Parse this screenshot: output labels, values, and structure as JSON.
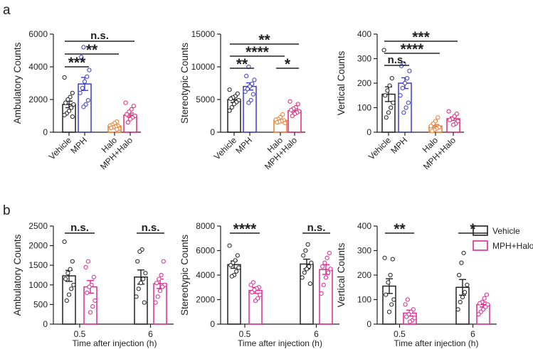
{
  "panels": {
    "a": "a",
    "b": "b"
  },
  "colors": {
    "Vehicle": "#222222",
    "MPH": "#3c3cd0",
    "Halo": "#f07a2a",
    "MPH+Halo": "#e0287a",
    "MPH+Halo_b": "#e02890"
  },
  "legend": {
    "vehicle": "Vehicle",
    "mph_halo": "MPH+Halo"
  },
  "chart_data": [
    {
      "type": "bar",
      "panel": "a",
      "title": "",
      "ylabel": "Ambulatory Counts",
      "categories": [
        "Vehicle",
        "MPH",
        "Halo",
        "MPH+Halo"
      ],
      "values": [
        1700,
        2950,
        380,
        1050
      ],
      "sem": [
        200,
        400,
        60,
        120
      ],
      "ylim": [
        0,
        6000
      ],
      "yticks": [
        0,
        2000,
        4000,
        6000
      ],
      "points": [
        [
          3350,
          2400,
          2150,
          2000,
          1800,
          1700,
          1500,
          1300,
          1150,
          1050,
          950
        ],
        [
          5200,
          4600,
          3800,
          3400,
          3100,
          2700,
          2400,
          1950,
          1700,
          1550
        ],
        [
          650,
          550,
          450,
          400,
          380,
          340,
          300,
          260,
          220,
          180
        ],
        [
          1800,
          1600,
          1400,
          1250,
          1100,
          1000,
          900,
          800,
          600
        ]
      ],
      "significance": [
        {
          "from": 0,
          "to": 1,
          "label": "***",
          "level": 0
        },
        {
          "from": 0,
          "to": 2,
          "label": "**",
          "level": 1
        },
        {
          "from": 0,
          "to": 3,
          "label": "n.s.",
          "level": 2
        }
      ]
    },
    {
      "type": "bar",
      "panel": "a",
      "title": "",
      "ylabel": "Stereotypic Counts",
      "categories": [
        "Vehicle",
        "MPH",
        "Halo",
        "MPH+Halo"
      ],
      "values": [
        5000,
        7000,
        1800,
        3300
      ],
      "sem": [
        450,
        550,
        150,
        250
      ],
      "ylim": [
        0,
        15000
      ],
      "yticks": [
        0,
        5000,
        10000,
        15000
      ],
      "points": [
        [
          6500,
          5900,
          5500,
          5300,
          5100,
          4900,
          4600,
          4300,
          3800,
          3300
        ],
        [
          10000,
          8600,
          8000,
          7400,
          7000,
          6600,
          6200,
          5800,
          4900,
          4500
        ],
        [
          2700,
          2300,
          2000,
          1900,
          1800,
          1700,
          1600,
          1500,
          1400
        ],
        [
          4700,
          4300,
          3800,
          3600,
          3400,
          3200,
          3000,
          2800,
          2500
        ]
      ],
      "significance": [
        {
          "from": 0,
          "to": 1,
          "label": "**",
          "level": 0
        },
        {
          "from": 2,
          "to": 3,
          "label": "*",
          "level": 0
        },
        {
          "from": 0,
          "to": 2,
          "label": "****",
          "level": 1
        },
        {
          "from": 0,
          "to": 3,
          "label": "**",
          "level": 2
        }
      ]
    },
    {
      "type": "bar",
      "panel": "a",
      "title": "",
      "ylabel": "Vertical Counts",
      "categories": [
        "Vehicle",
        "MPH",
        "Halo",
        "MPH+Halo"
      ],
      "values": [
        155,
        200,
        25,
        55
      ],
      "sem": [
        30,
        22,
        6,
        7
      ],
      "ylim": [
        0,
        400
      ],
      "yticks": [
        0,
        100,
        200,
        300,
        400
      ],
      "points": [
        [
          335,
          220,
          190,
          170,
          150,
          120,
          100,
          80,
          60
        ],
        [
          280,
          270,
          250,
          220,
          200,
          180,
          150,
          120,
          100,
          80
        ],
        [
          60,
          45,
          35,
          25,
          20,
          15,
          10,
          5
        ],
        [
          85,
          75,
          65,
          55,
          50,
          45,
          35,
          30
        ]
      ],
      "significance": [
        {
          "from": 0,
          "to": 1,
          "label": "n.s.",
          "level": 0
        },
        {
          "from": 0,
          "to": 2,
          "label": "****",
          "level": 1
        },
        {
          "from": 0,
          "to": 3,
          "label": "***",
          "level": 2
        }
      ]
    },
    {
      "type": "bar",
      "panel": "b",
      "title": "",
      "ylabel": "Ambulatory Counts",
      "xlabel": "Time after injection (h)",
      "groups": [
        "0.5",
        "6"
      ],
      "series": [
        {
          "name": "Vehicle",
          "values": [
            1230,
            1200
          ],
          "sem": [
            140,
            180
          ],
          "points": [
            [
              2100,
              1600,
              1400,
              1300,
              1150,
              1000,
              900,
              750,
              600
            ],
            [
              1900,
              1850,
              1600,
              1300,
              1150,
              1050,
              900,
              700,
              550
            ]
          ]
        },
        {
          "name": "MPH+Halo",
          "values": [
            950,
            1030
          ],
          "sem": [
            160,
            120
          ],
          "points": [
            [
              1600,
              1450,
              1200,
              1000,
              950,
              800,
              600,
              450,
              300
            ],
            [
              1600,
              1250,
              1150,
              1050,
              1000,
              950,
              850,
              700,
              550
            ]
          ]
        }
      ],
      "ylim": [
        0,
        2500
      ],
      "yticks": [
        0,
        500,
        1000,
        1500,
        2000,
        2500
      ],
      "significance": [
        {
          "group": 0,
          "label": "n.s."
        },
        {
          "group": 1,
          "label": "n.s."
        }
      ]
    },
    {
      "type": "bar",
      "panel": "b",
      "title": "",
      "ylabel": "Stereotypic Counts",
      "xlabel": "Time after injection (h)",
      "groups": [
        "0.5",
        "6"
      ],
      "series": [
        {
          "name": "Vehicle",
          "values": [
            4850,
            4900
          ],
          "sem": [
            300,
            400
          ],
          "points": [
            [
              6400,
              5600,
              5200,
              5000,
              4800,
              4600,
              4300,
              4000,
              3900
            ],
            [
              6500,
              6000,
              5600,
              5000,
              4700,
              4500,
              4200,
              3800,
              3300
            ]
          ]
        },
        {
          "name": "MPH+Halo",
          "values": [
            2750,
            4450
          ],
          "sem": [
            250,
            400
          ],
          "points": [
            [
              3400,
              3200,
              3000,
              2900,
              2800,
              2600,
              2400,
              2100,
              1900
            ],
            [
              5800,
              5400,
              5000,
              4700,
              4500,
              4200,
              3800,
              3200,
              2500
            ]
          ]
        }
      ],
      "ylim": [
        0,
        8000
      ],
      "yticks": [
        0,
        2000,
        4000,
        6000,
        8000
      ],
      "significance": [
        {
          "group": 0,
          "label": "****"
        },
        {
          "group": 1,
          "label": "n.s."
        }
      ]
    },
    {
      "type": "bar",
      "panel": "b",
      "title": "",
      "ylabel": "Vertical Counts",
      "xlabel": "Time after injection (h)",
      "groups": [
        "0.5",
        "6"
      ],
      "series": [
        {
          "name": "Vehicle",
          "values": [
            155,
            150
          ],
          "sem": [
            30,
            32
          ],
          "points": [
            [
              270,
              265,
              200,
              170,
              120,
              100,
              80,
              50
            ],
            [
              290,
              250,
              200,
              160,
              130,
              110,
              90,
              60
            ]
          ]
        },
        {
          "name": "MPH+Halo",
          "values": [
            45,
            80
          ],
          "sem": [
            12,
            10
          ],
          "points": [
            [
              100,
              80,
              60,
              50,
              40,
              30,
              25,
              15,
              10
            ],
            [
              120,
              105,
              90,
              85,
              80,
              70,
              60,
              50,
              40
            ]
          ]
        }
      ],
      "ylim": [
        0,
        400
      ],
      "yticks": [
        0,
        100,
        200,
        300,
        400
      ],
      "significance": [
        {
          "group": 0,
          "label": "**"
        },
        {
          "group": 1,
          "label": "*"
        }
      ]
    }
  ]
}
